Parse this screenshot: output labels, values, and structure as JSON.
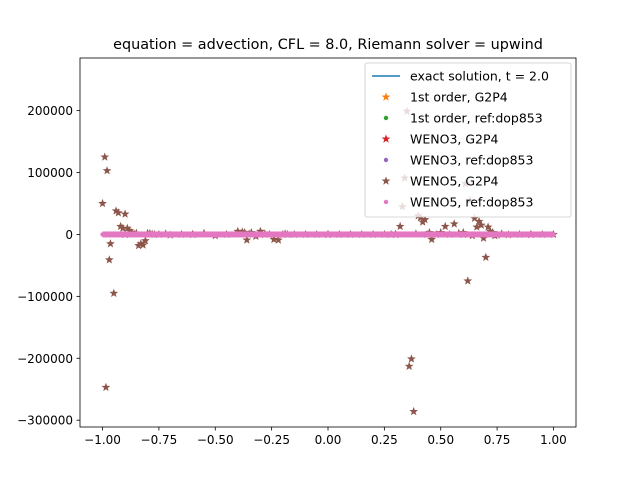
{
  "chart_data": {
    "type": "scatter",
    "title": "equation = advection, CFL = 8.0, Riemann solver = upwind",
    "xlabel": "",
    "ylabel": "",
    "xlim": [
      -1.1,
      1.1
    ],
    "ylim": [
      -311000,
      285000
    ],
    "grid": false,
    "legend_position": "top-right",
    "x_ticks": [
      -1.0,
      -0.75,
      -0.5,
      -0.25,
      0.0,
      0.25,
      0.5,
      0.75,
      1.0
    ],
    "x_tick_labels": [
      "−1.00",
      "−0.75",
      "−0.50",
      "−0.25",
      "0.00",
      "0.25",
      "0.50",
      "0.75",
      "1.00"
    ],
    "y_ticks": [
      -300000,
      -200000,
      -100000,
      0,
      100000,
      200000
    ],
    "y_tick_labels": [
      "−300000",
      "−200000",
      "−100000",
      "0",
      "100000",
      "200000"
    ],
    "series": [
      {
        "name": "exact solution, t = 2.0",
        "kind": "line",
        "color": "#1f77b4",
        "x": [
          -1.0,
          1.0
        ],
        "y": [
          0,
          0
        ]
      },
      {
        "name": "1st order, G2P4",
        "kind": "marker",
        "marker": "star",
        "color": "#ff7f0e",
        "x": [
          -0.9,
          -0.6,
          -0.3,
          0.0,
          0.3,
          0.6,
          0.9
        ],
        "y": [
          0,
          0,
          0,
          0,
          0,
          0,
          0
        ]
      },
      {
        "name": "1st order, ref:dop853",
        "kind": "marker",
        "marker": "dot",
        "color": "#2ca02c",
        "x": [
          -0.9,
          -0.6,
          -0.3,
          0.0,
          0.3,
          0.6,
          0.9
        ],
        "y": [
          0,
          0,
          0,
          0,
          0,
          0,
          0
        ]
      },
      {
        "name": "WENO3, G2P4",
        "kind": "marker",
        "marker": "star",
        "color": "#d62728",
        "x": [
          -0.9,
          -0.6,
          -0.3,
          0.0,
          0.3,
          0.6,
          0.9
        ],
        "y": [
          0,
          0,
          0,
          0,
          0,
          0,
          0
        ]
      },
      {
        "name": "WENO3, ref:dop853",
        "kind": "marker",
        "marker": "dot",
        "color": "#9467bd",
        "x": [
          -0.9,
          -0.6,
          -0.3,
          0.0,
          0.3,
          0.6,
          0.9
        ],
        "y": [
          0,
          0,
          0,
          0,
          0,
          0,
          0
        ]
      },
      {
        "name": "WENO5, G2P4",
        "kind": "marker",
        "marker": "star",
        "color": "#8c564b",
        "x": [
          -1.0,
          -0.99,
          -0.985,
          -0.98,
          -0.97,
          -0.965,
          -0.95,
          -0.94,
          -0.93,
          -0.92,
          -0.91,
          -0.9,
          -0.89,
          -0.88,
          -0.87,
          -0.86,
          -0.85,
          -0.84,
          -0.83,
          -0.82,
          -0.81,
          -0.8,
          -0.79,
          -0.78,
          -0.77,
          -0.75,
          -0.72,
          -0.7,
          -0.65,
          -0.6,
          -0.55,
          -0.5,
          -0.45,
          -0.4,
          -0.38,
          -0.37,
          -0.36,
          -0.35,
          -0.34,
          -0.32,
          -0.3,
          -0.28,
          -0.26,
          -0.24,
          -0.22,
          -0.2,
          -0.19,
          -0.18,
          -0.15,
          -0.1,
          -0.05,
          0.0,
          0.05,
          0.1,
          0.15,
          0.2,
          0.25,
          0.28,
          0.3,
          0.32,
          0.33,
          0.34,
          0.35,
          0.36,
          0.37,
          0.38,
          0.39,
          0.4,
          0.41,
          0.42,
          0.43,
          0.44,
          0.45,
          0.46,
          0.48,
          0.5,
          0.52,
          0.54,
          0.56,
          0.58,
          0.6,
          0.61,
          0.62,
          0.63,
          0.64,
          0.65,
          0.66,
          0.67,
          0.68,
          0.69,
          0.7,
          0.71,
          0.72,
          0.73,
          0.74,
          0.75,
          0.77,
          0.8,
          0.85,
          0.9,
          0.95,
          1.0
        ],
        "y": [
          50000,
          125000,
          -247000,
          103000,
          -41000,
          -15000,
          -95000,
          38000,
          35000,
          13000,
          10000,
          33000,
          10000,
          6000,
          3000,
          1000,
          2000,
          -18000,
          -15000,
          -17000,
          -10000,
          2000,
          1500,
          500,
          0,
          0,
          1000,
          -1000,
          0,
          0,
          2000,
          -2000,
          0,
          5000,
          4000,
          3000,
          -9000,
          1000,
          3000,
          -3000,
          5000,
          1000,
          0,
          -8000,
          -9000,
          0,
          1000,
          0,
          0,
          0,
          0,
          0,
          0,
          0,
          0,
          0,
          0,
          0,
          0,
          13000,
          45000,
          91000,
          199000,
          -213000,
          -201000,
          -286000,
          1000,
          30000,
          27000,
          20000,
          24000,
          0,
          3000,
          -8000,
          0,
          3000,
          13000,
          0,
          17000,
          2000,
          3000,
          82000,
          -75000,
          55000,
          -2000,
          26000,
          12000,
          21000,
          15000,
          -6000,
          -37000,
          12000,
          5000,
          3000,
          -2000,
          -1000,
          1000,
          -500,
          0,
          0,
          0,
          0
        ]
      },
      {
        "name": "WENO5, ref:dop853",
        "kind": "marker",
        "marker": "dot",
        "color": "#e377c2",
        "x": [
          -1.0,
          -0.95,
          -0.9,
          -0.85,
          -0.8,
          -0.75,
          -0.7,
          -0.65,
          -0.6,
          -0.55,
          -0.5,
          -0.45,
          -0.4,
          -0.35,
          -0.3,
          -0.25,
          -0.2,
          -0.15,
          -0.1,
          -0.05,
          0.0,
          0.05,
          0.1,
          0.15,
          0.2,
          0.25,
          0.3,
          0.35,
          0.4,
          0.45,
          0.5,
          0.55,
          0.6,
          0.65,
          0.7,
          0.75,
          0.8,
          0.85,
          0.9,
          0.95,
          1.0
        ],
        "y": [
          0,
          0,
          0,
          0,
          0,
          0,
          0,
          0,
          0,
          0,
          0,
          0,
          0,
          0,
          0,
          0,
          0,
          0,
          0,
          0,
          0,
          0,
          0,
          0,
          0,
          0,
          0,
          0,
          0,
          0,
          0,
          0,
          0,
          0,
          0,
          0,
          0,
          0,
          0,
          0,
          0
        ]
      }
    ]
  }
}
